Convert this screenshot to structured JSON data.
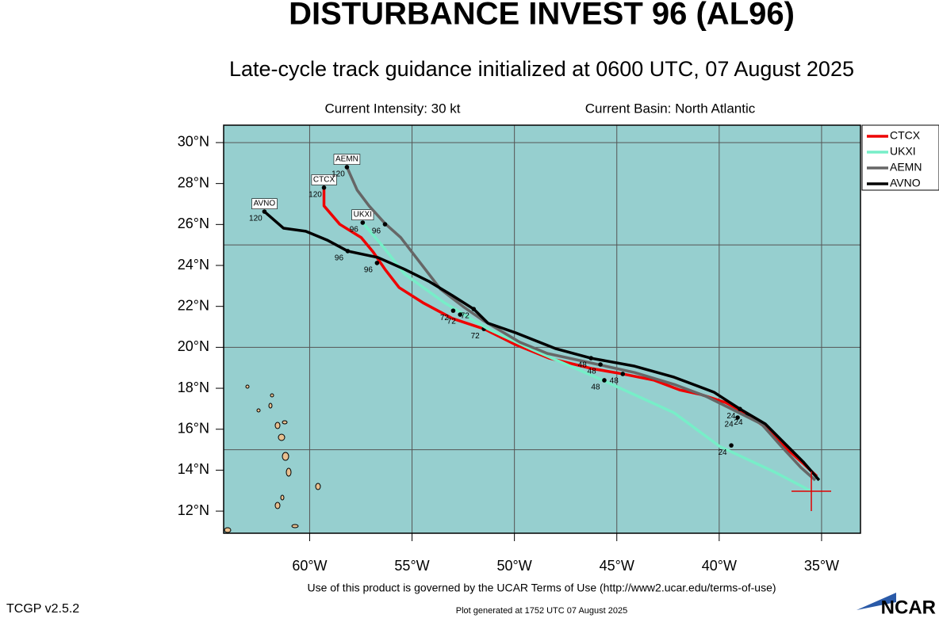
{
  "chart_data": {
    "type": "track",
    "title": "DISTURBANCE INVEST 96 (AL96)",
    "subtitle": "Late-cycle track guidance initialized at 0600 UTC, 07 August 2025",
    "intensity": "Current Intensity: 30 kt",
    "basin": "Current Basin: North Atlantic",
    "footer": "Use of this product is governed by the UCAR Terms of Use (http://www2.ucar.edu/terms-of-use)",
    "version": "TCGP v2.5.2",
    "generated": "Plot generated at 1752 UTC   07 August 2025",
    "logo": "NCAR",
    "xlim": [
      -64.2,
      -33.1
    ],
    "ylim": [
      10.92,
      30.85
    ],
    "xticks": [
      {
        "value": -60,
        "label": "60°W"
      },
      {
        "value": -55,
        "label": "55°W"
      },
      {
        "value": -50,
        "label": "50°W"
      },
      {
        "value": -45,
        "label": "45°W"
      },
      {
        "value": -40,
        "label": "40°W"
      },
      {
        "value": -35,
        "label": "35°W"
      }
    ],
    "yticks": [
      {
        "value": 12,
        "label": "12°N"
      },
      {
        "value": 14,
        "label": "14°N"
      },
      {
        "value": 16,
        "label": "16°N"
      },
      {
        "value": 18,
        "label": "18°N"
      },
      {
        "value": 20,
        "label": "20°N"
      },
      {
        "value": 22,
        "label": "22°N"
      },
      {
        "value": 24,
        "label": "24°N"
      },
      {
        "value": 26,
        "label": "26°N"
      },
      {
        "value": 28,
        "label": "28°N"
      },
      {
        "value": 30,
        "label": "30°N"
      }
    ],
    "grid_lon": [
      -60,
      -55,
      -50,
      -45,
      -40,
      -35
    ],
    "grid_lat": [
      15,
      20,
      25,
      30
    ],
    "current_position": {
      "lon": -35.5,
      "lat": 12.97
    },
    "series": [
      {
        "name": "CTCX",
        "color": "#ee0000",
        "x": [
          -35.23,
          -35.89,
          -36.97,
          -37.86,
          -38.68,
          -39.68,
          -40.88,
          -41.93,
          -43.17,
          -44.71,
          -46.26,
          -48.31,
          -49.94,
          -51.49,
          -53.03,
          -54.47,
          -55.63,
          -56.32,
          -56.9,
          -57.48,
          -58.53,
          -59.3,
          -59.3
        ],
        "values": [
          13.7,
          14.32,
          15.29,
          16.18,
          16.76,
          17.3,
          17.69,
          17.92,
          18.39,
          18.7,
          18.97,
          19.47,
          20.13,
          20.9,
          21.41,
          22.18,
          22.92,
          23.81,
          24.66,
          25.36,
          26.01,
          26.91,
          27.8
        ],
        "marker_labels": [
          "24",
          "48",
          "72",
          "96",
          "120"
        ],
        "marker_lon": [
          -38.64,
          -44.71,
          -51.49,
          -56.71,
          -59.3
        ],
        "marker_lat": [
          16.68,
          18.7,
          20.9,
          24.12,
          27.8
        ]
      },
      {
        "name": "UKXI",
        "color": "#77eec8",
        "x": [
          -35.5,
          -37.28,
          -39.99,
          -42.2,
          -45.68,
          -49.16,
          -51.29,
          -53.42,
          -55.36,
          -56.4,
          -57.41
        ],
        "values": [
          12.97,
          13.9,
          15.17,
          16.8,
          18.39,
          19.9,
          20.9,
          22.18,
          23.58,
          24.9,
          26.09
        ],
        "marker_labels": [
          "24",
          "48",
          "72",
          "96"
        ],
        "marker_lon": [
          -39.41,
          -45.61,
          -52.65,
          -57.41
        ],
        "marker_lat": [
          15.21,
          18.39,
          21.6,
          26.09
        ]
      },
      {
        "name": "AEMN",
        "color": "#666666",
        "x": [
          -35.31,
          -36.01,
          -36.97,
          -37.94,
          -39.1,
          -40.65,
          -42.2,
          -44.13,
          -46.46,
          -48.39,
          -49.74,
          -51.49,
          -52.45,
          -53.61,
          -54.5,
          -55.55,
          -56.32,
          -57.1,
          -57.68,
          -58.18
        ],
        "values": [
          13.51,
          14.13,
          15.17,
          16.26,
          16.84,
          17.61,
          18.19,
          18.77,
          19.28,
          19.7,
          20.25,
          21.29,
          21.95,
          22.84,
          24.0,
          25.36,
          26.05,
          26.91,
          27.68,
          28.8
        ],
        "marker_labels": [
          "24",
          "48",
          "72",
          "96",
          "120"
        ],
        "marker_lon": [
          -39.1,
          -45.8,
          -52.99,
          -56.32,
          -58.18
        ],
        "marker_lat": [
          16.57,
          19.16,
          21.79,
          26.01,
          28.8
        ]
      },
      {
        "name": "AVNO",
        "color": "#000000",
        "x": [
          -35.12,
          -35.89,
          -36.78,
          -37.75,
          -38.99,
          -40.26,
          -42.2,
          -44.13,
          -46.26,
          -48.0,
          -49.94,
          -51.29,
          -51.99,
          -53.03,
          -54.19,
          -55.36,
          -56.67,
          -58.14,
          -59.15,
          -60.19,
          -61.28,
          -62.21
        ],
        "values": [
          13.51,
          14.4,
          15.29,
          16.26,
          16.99,
          17.81,
          18.54,
          19.08,
          19.47,
          19.94,
          20.71,
          21.18,
          21.87,
          22.53,
          23.23,
          23.81,
          24.39,
          24.7,
          25.24,
          25.67,
          25.82,
          26.63
        ],
        "marker_labels": [
          "24",
          "48",
          "72",
          "96",
          "120"
        ],
        "marker_lon": [
          -38.99,
          -46.26,
          -51.99,
          -58.14,
          -62.21
        ],
        "marker_lat": [
          16.99,
          19.47,
          21.87,
          24.7,
          26.63
        ]
      }
    ]
  }
}
